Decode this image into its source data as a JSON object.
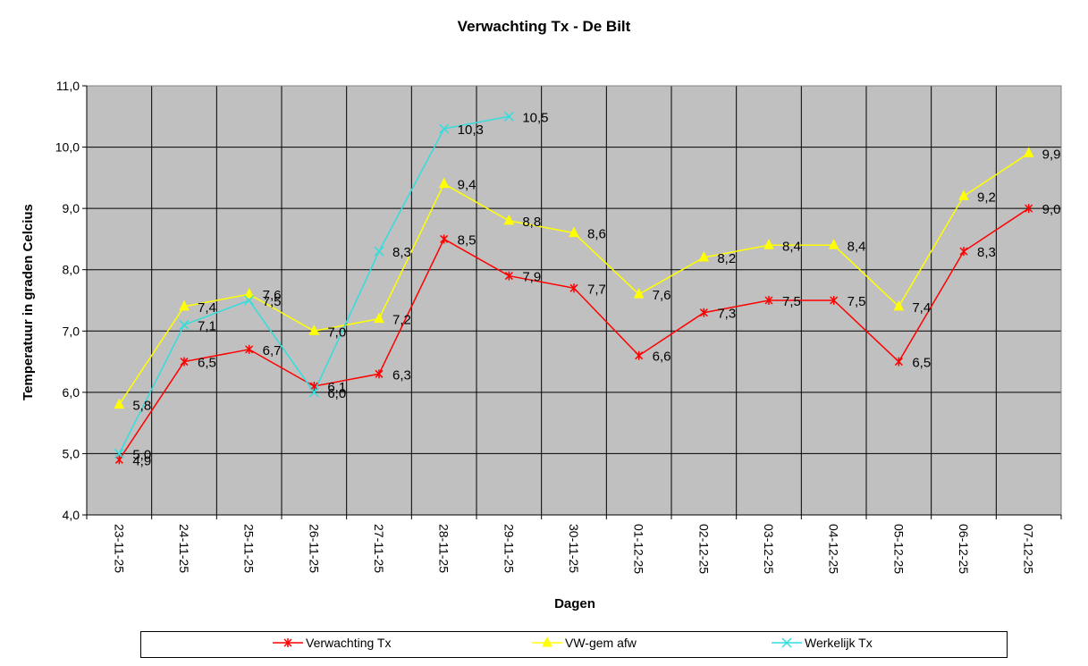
{
  "chart_data": {
    "type": "line",
    "title": "Verwachting Tx - De Bilt",
    "xlabel": "Dagen",
    "ylabel": "Temperatuur in graden Celcius",
    "ylim": [
      4.0,
      11.0
    ],
    "yticks": [
      "4,0",
      "5,0",
      "6,0",
      "7,0",
      "8,0",
      "9,0",
      "10,0",
      "11,0"
    ],
    "grid": true,
    "legend_position": "bottom",
    "categories": [
      "23-11-25",
      "24-11-25",
      "25-11-25",
      "26-11-25",
      "27-11-25",
      "28-11-25",
      "29-11-25",
      "30-11-25",
      "01-12-25",
      "02-12-25",
      "03-12-25",
      "04-12-25",
      "05-12-25",
      "06-12-25",
      "07-12-25"
    ],
    "series": [
      {
        "name": "Verwachting Tx",
        "color": "#ff0000",
        "marker": "asterisk",
        "values": [
          4.9,
          6.5,
          6.7,
          6.1,
          6.3,
          8.5,
          7.9,
          7.7,
          6.6,
          7.3,
          7.5,
          7.5,
          6.5,
          8.3,
          9.0
        ],
        "labels": [
          "4,9",
          "6,5",
          "6,7",
          "6,1",
          "6,3",
          "8,5",
          "7,9",
          "7,7",
          "6,6",
          "7,3",
          "7,5",
          "7,5",
          "6,5",
          "8,3",
          "9,0"
        ]
      },
      {
        "name": "VW-gem afw",
        "color": "#ffff00",
        "marker": "triangle",
        "values": [
          5.8,
          7.4,
          7.6,
          7.0,
          7.2,
          9.4,
          8.8,
          8.6,
          7.6,
          8.2,
          8.4,
          8.4,
          7.4,
          9.2,
          9.9
        ],
        "labels": [
          "5,8",
          "7,4",
          "7,6",
          "7,0",
          "7,2",
          "9,4",
          "8,8",
          "8,6",
          "7,6",
          "8,2",
          "8,4",
          "8,4",
          "7,4",
          "9,2",
          "9,9"
        ]
      },
      {
        "name": "Werkelijk Tx",
        "color": "#33dddd",
        "marker": "x",
        "values": [
          5.0,
          7.1,
          7.5,
          6.0,
          8.3,
          10.3,
          10.5,
          null,
          null,
          null,
          null,
          null,
          null,
          null,
          null
        ],
        "labels": [
          "5,0",
          "7,1",
          "7,5",
          "6,0",
          "8,3",
          "10,3",
          "10,5",
          null,
          null,
          null,
          null,
          null,
          null,
          null,
          null
        ]
      }
    ]
  },
  "colors": {
    "plot_background": "#c0c0c0",
    "grid": "#000000"
  }
}
